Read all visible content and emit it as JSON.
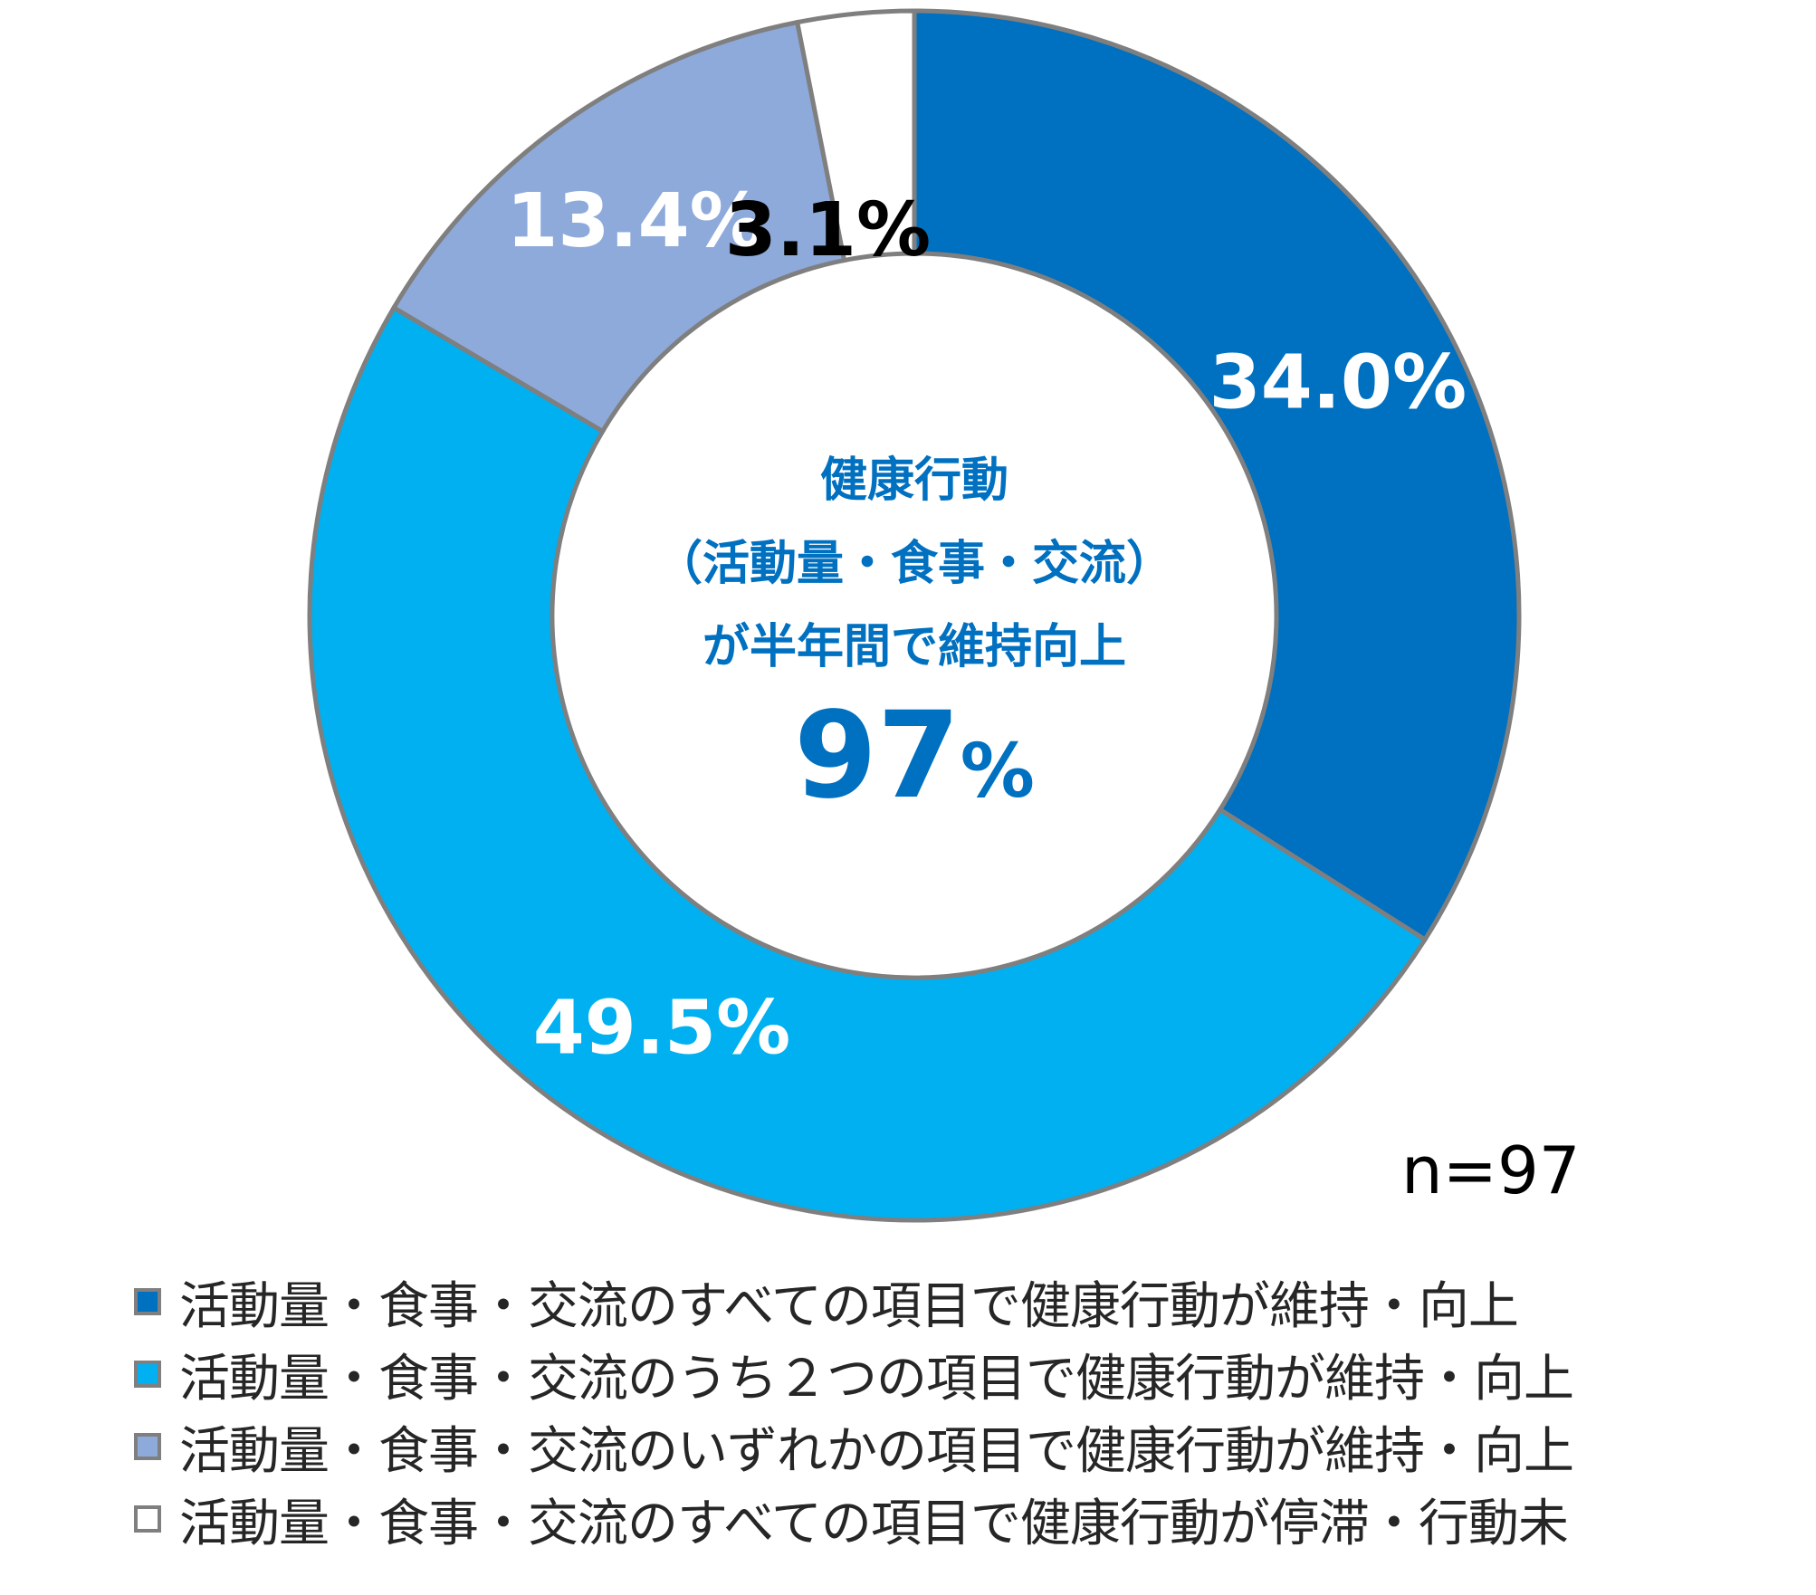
{
  "chart_data": {
    "type": "pie",
    "style": "donut",
    "categories": [
      "活動量・食事・交流のすべての項目で健康行動が維持・向上",
      "活動量・食事・交流のうち２つの項目で健康行動が維持・向上",
      "活動量・食事・交流のいずれかの項目で健康行動が維持・向上",
      "活動量・食事・交流のすべての項目で健康行動が停滞・行動未"
    ],
    "values": [
      34.0,
      49.5,
      13.4,
      3.1
    ],
    "data_labels": [
      "34.0%",
      "49.5%",
      "13.4%",
      "3.1%"
    ],
    "colors": [
      "#0070c0",
      "#00b0f0",
      "#8eaadb",
      "#ffffff"
    ],
    "label_colors": [
      "#ffffff",
      "#ffffff",
      "#ffffff",
      "#000000"
    ],
    "outline_color": "#7f7f7f",
    "center_text": {
      "line1": "健康行動",
      "line2": "（活動量・食事・交流）",
      "line3": "が半年間で維持向上",
      "value": "97",
      "unit": "%"
    },
    "n_label": "n=97",
    "legend_position": "bottom"
  }
}
